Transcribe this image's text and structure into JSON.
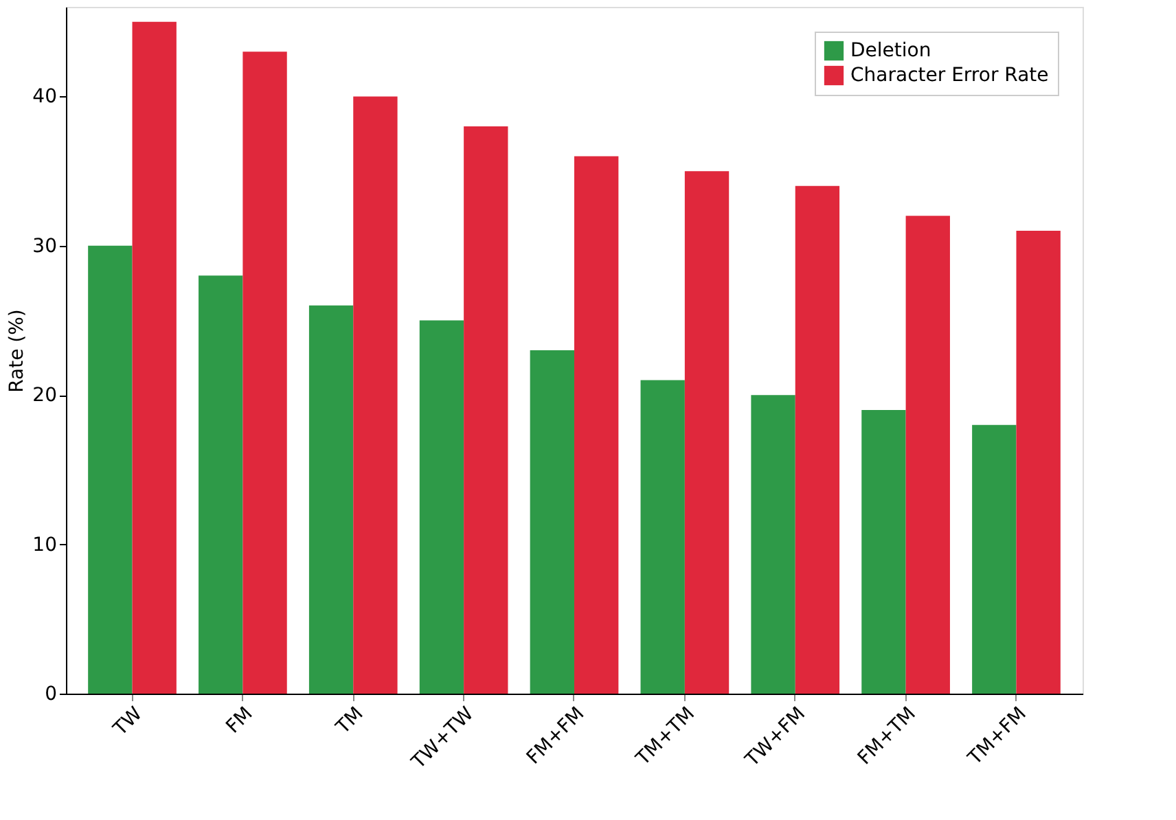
{
  "chart_data": {
    "type": "bar",
    "ylabel": "Rate (%)",
    "categories": [
      "TW",
      "FM",
      "TM",
      "TW+TW",
      "FM+FM",
      "TM+TM",
      "TW+FM",
      "FM+TM",
      "TM+FM"
    ],
    "series": [
      {
        "name": "Deletion",
        "color": "#2e9a48",
        "values": [
          30,
          28,
          26,
          25,
          23,
          21,
          20,
          19,
          18
        ]
      },
      {
        "name": "Character Error Rate",
        "color": "#e0283c",
        "values": [
          45,
          43,
          40,
          38,
          36,
          35,
          34,
          32,
          31
        ]
      }
    ],
    "ylim": [
      0,
      46
    ],
    "yticks": [
      0,
      10,
      20,
      30,
      40
    ],
    "grid": false,
    "legend": "top right"
  }
}
